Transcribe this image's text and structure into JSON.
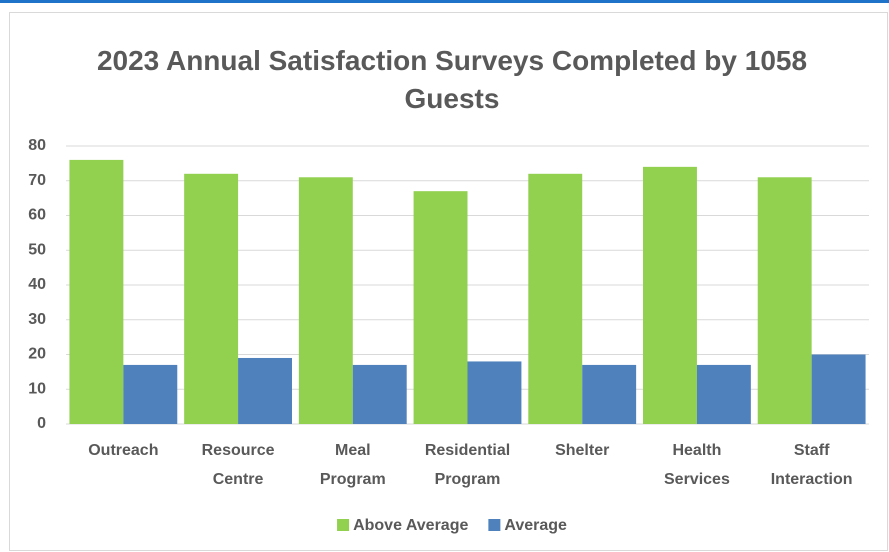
{
  "chart_data": {
    "type": "bar",
    "title": "2023 Annual Satisfaction Surveys Completed by 1058 Guests",
    "categories": [
      "Outreach",
      "Resource Centre",
      "Meal Program",
      "Residential Program",
      "Shelter",
      "Health Services",
      "Staff Interaction"
    ],
    "series": [
      {
        "name": "Above Average",
        "color": "#92d050",
        "values": [
          76,
          72,
          71,
          67,
          72,
          74,
          71
        ]
      },
      {
        "name": "Average",
        "color": "#4f81bd",
        "values": [
          17,
          19,
          17,
          18,
          17,
          17,
          20
        ]
      }
    ],
    "ylim": [
      0,
      80
    ],
    "yticks": [
      0,
      10,
      20,
      30,
      40,
      50,
      60,
      70,
      80
    ],
    "grid": true,
    "legend": "bottom"
  }
}
